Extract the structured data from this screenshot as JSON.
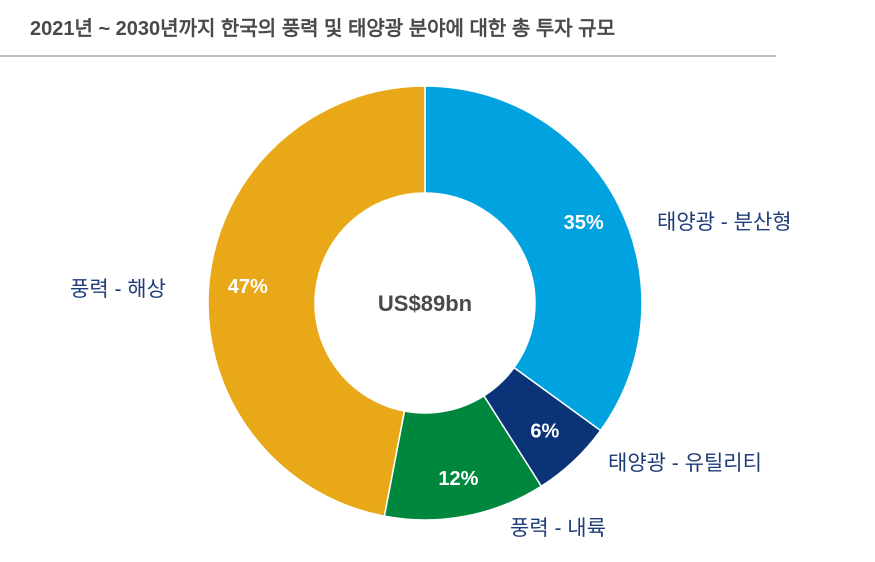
{
  "chart_data": {
    "type": "pie",
    "variant": "donut",
    "title": "2021년 ~ 2030년까지 한국의 풍력 및 태양광 분야에 대한 총 투자 규모",
    "center_label": "US$89bn",
    "categories": [
      "태양광 - 분산형",
      "태양광 - 유틸리티",
      "풍력 - 내륙",
      "풍력 - 해상"
    ],
    "values": [
      35,
      6,
      12,
      47
    ],
    "data_labels": [
      "35%",
      "6%",
      "12%",
      "47%"
    ],
    "colors": [
      "#00a3e0",
      "#0b3478",
      "#00873e",
      "#e8a817"
    ],
    "start": "12 o'clock, clockwise",
    "legend": "none (direct labels)"
  }
}
